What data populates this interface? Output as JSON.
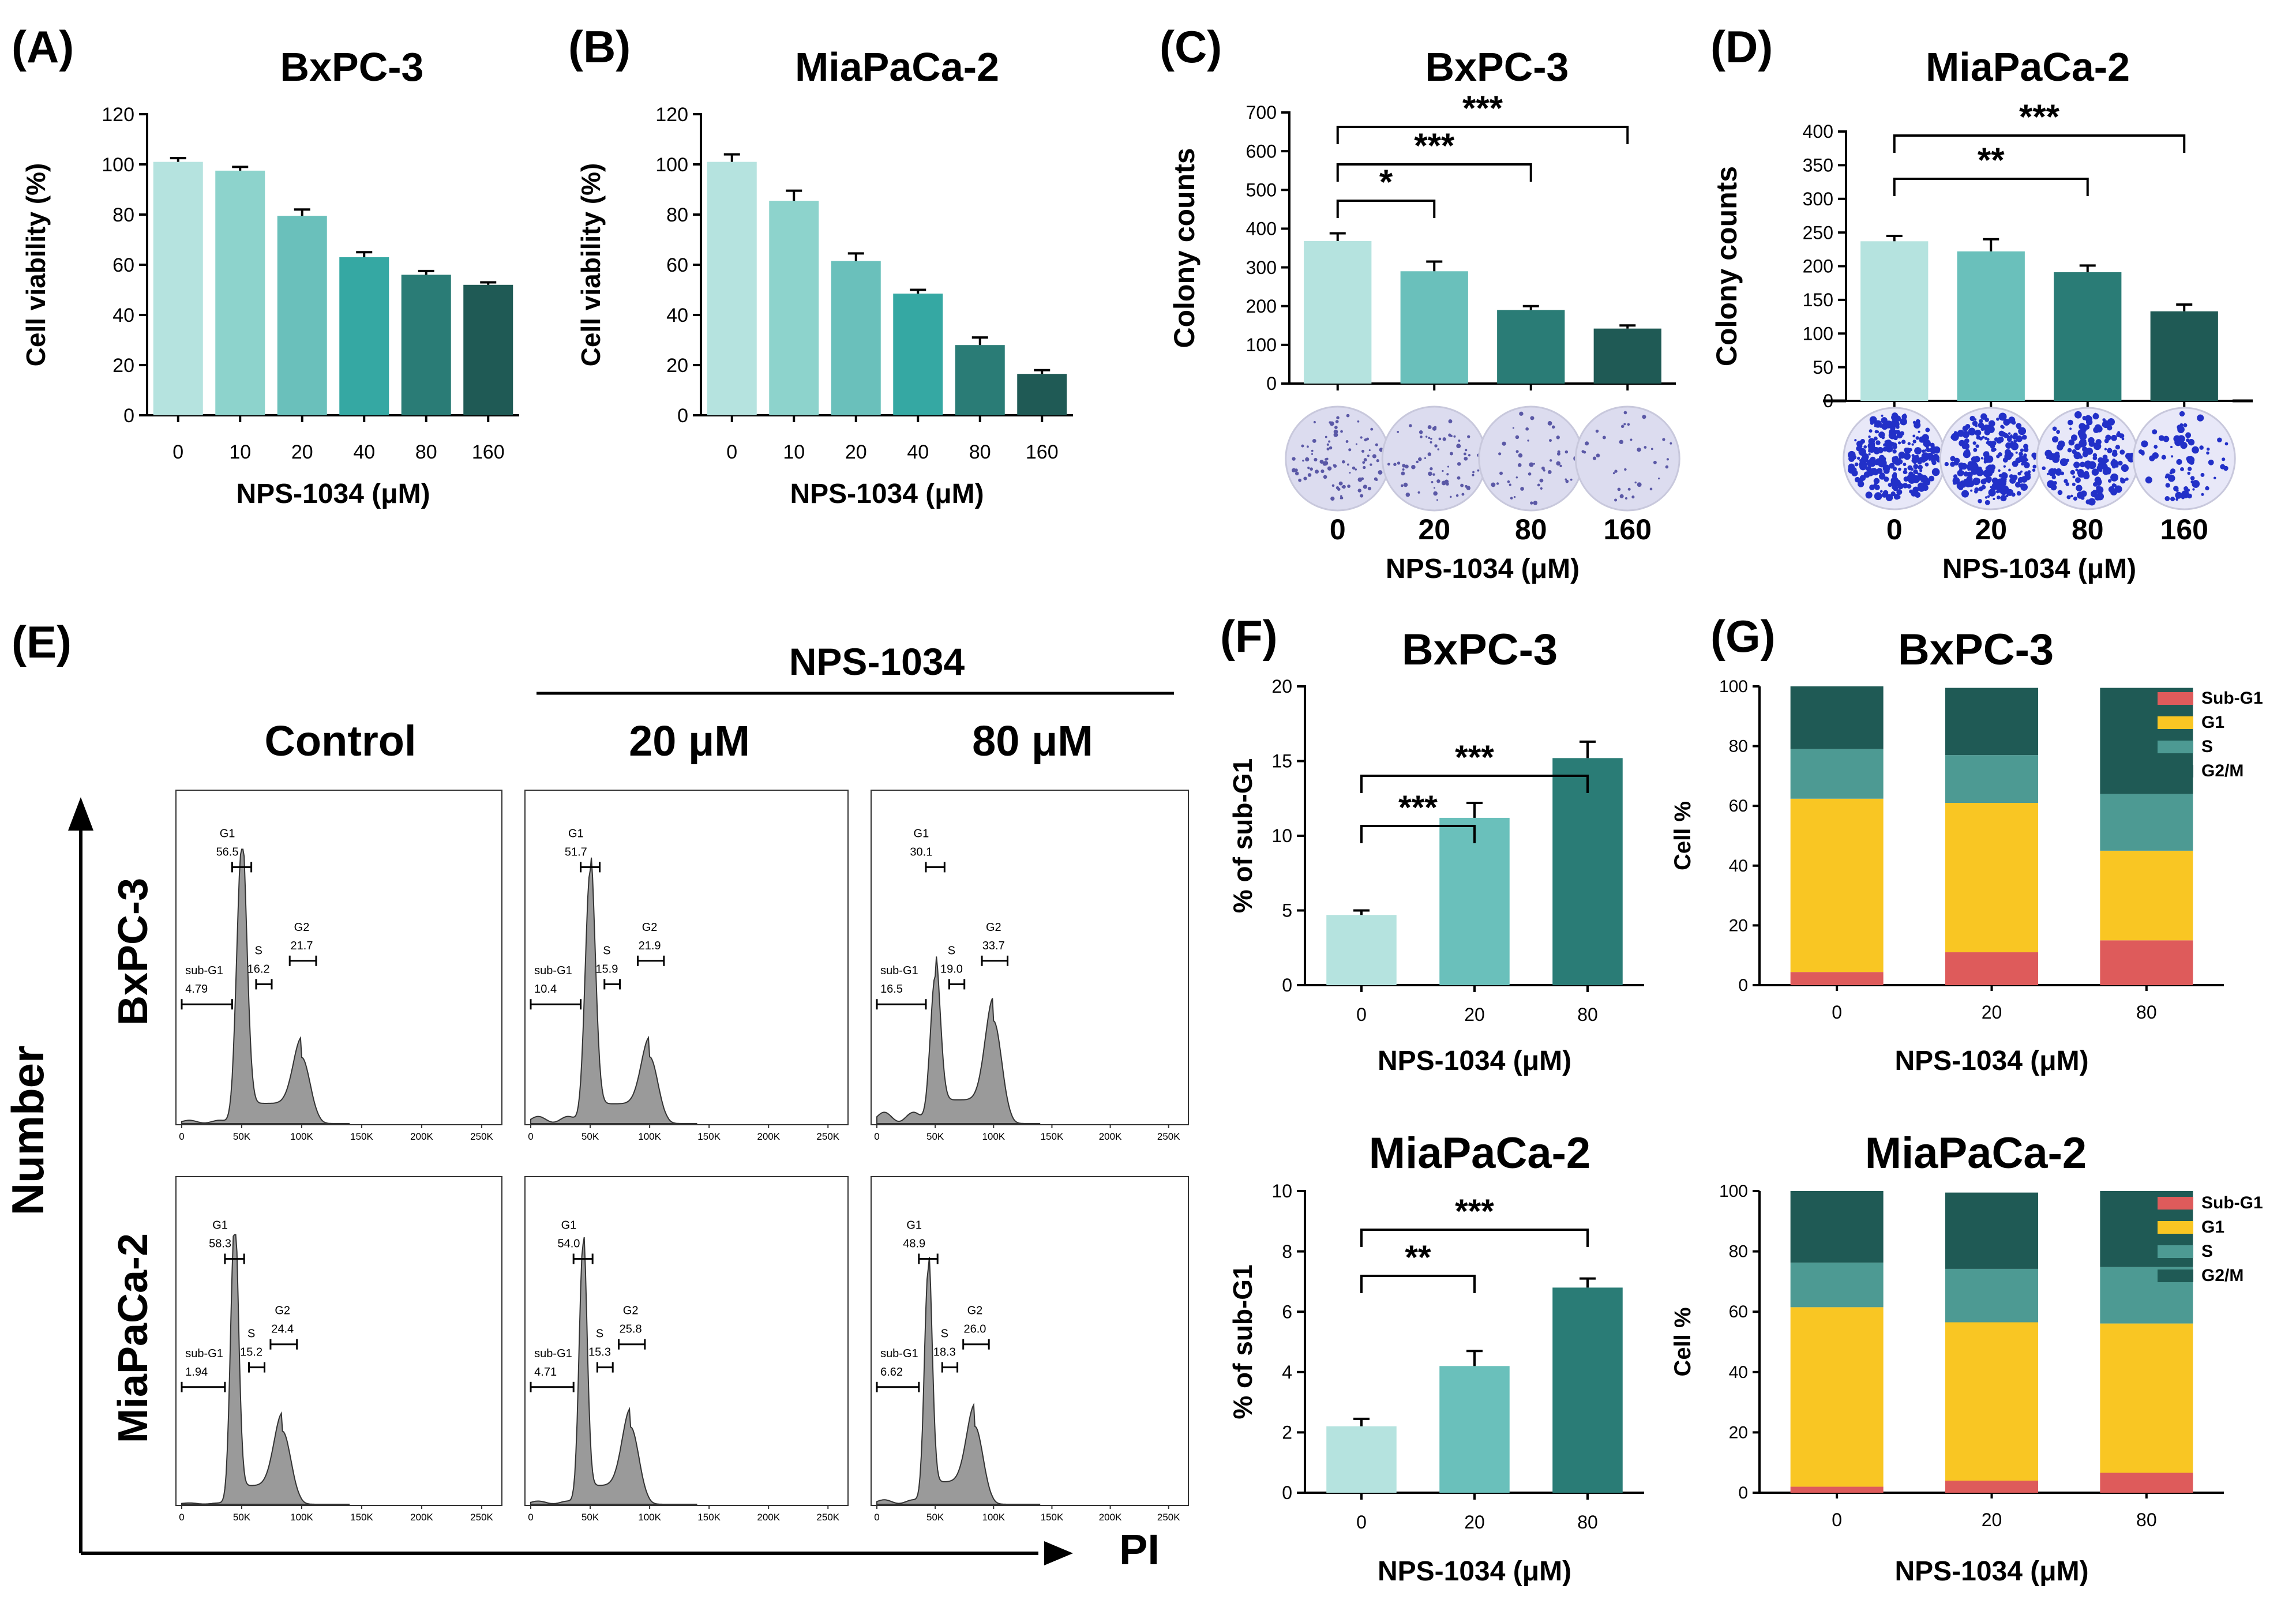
{
  "figure": {
    "background": "#ffffff"
  },
  "colors": {
    "c0": "#b5e3df",
    "c10": "#8dd3cc",
    "c20": "#6ac0bb",
    "c40": "#35a8a3",
    "c80": "#2a7c76",
    "c160": "#1f5a55",
    "subg1": "#de5b5b",
    "g1": "#f9c623",
    "s": "#4d9a93",
    "g2m": "#1f5a55",
    "histFill": "#9a9a9a",
    "axis": "#000000"
  },
  "chart_data": [
    {
      "panel": "(A)",
      "type": "bar",
      "title": "BxPC-3",
      "categories": [
        "0",
        "10",
        "20",
        "40",
        "80",
        "160"
      ],
      "values": [
        101,
        97.5,
        79.5,
        63,
        56,
        52
      ],
      "errors": [
        1.5,
        1.5,
        2.5,
        2,
        1.5,
        1
      ],
      "ylabel": "Cell viability (%)",
      "xlabel": "NPS-1034  (μM)",
      "ylim": [
        0,
        120
      ],
      "yticks": [
        "0",
        "20",
        "40",
        "60",
        "80",
        "100",
        "120"
      ],
      "significance": []
    },
    {
      "panel": "(B)",
      "type": "bar",
      "title": "MiaPaCa-2",
      "categories": [
        "0",
        "10",
        "20",
        "40",
        "80",
        "160"
      ],
      "values": [
        101,
        85.5,
        61.5,
        48.5,
        28,
        16.5
      ],
      "errors": [
        3,
        4,
        3,
        1.5,
        3,
        1.5
      ],
      "ylabel": "Cell viability (%)",
      "xlabel": "NPS-1034  (μM)",
      "ylim": [
        0,
        120
      ],
      "yticks": [
        "0",
        "20",
        "40",
        "60",
        "80",
        "100",
        "120"
      ],
      "significance": []
    },
    {
      "panel": "(C)",
      "type": "bar",
      "title": "BxPC-3",
      "categories": [
        "0",
        "20",
        "80",
        "160"
      ],
      "values": [
        368,
        290,
        190,
        142
      ],
      "errors": [
        20,
        25,
        10,
        8
      ],
      "ylabel": "Colony counts",
      "xlabel": "NPS-1034 (μM)",
      "ylim": [
        0,
        700
      ],
      "yticks": [
        "0",
        "100",
        "200",
        "300",
        "400",
        "500",
        "600",
        "700"
      ],
      "significance": [
        {
          "from": 0,
          "to": 1,
          "label": "*"
        },
        {
          "from": 0,
          "to": 2,
          "label": "***"
        },
        {
          "from": 0,
          "to": 3,
          "label": "***"
        }
      ]
    },
    {
      "panel": "(D)",
      "type": "bar",
      "title": "MiaPaCa-2",
      "categories": [
        "0",
        "20",
        "80",
        "160"
      ],
      "values": [
        237,
        222,
        191,
        133
      ],
      "errors": [
        8,
        18,
        10,
        10
      ],
      "ylabel": "Colony counts",
      "xlabel": "NPS-1034 (μM)",
      "ylim": [
        0,
        400
      ],
      "yticks": [
        "0",
        "50",
        "100",
        "150",
        "200",
        "250",
        "300",
        "350",
        "400"
      ],
      "significance": [
        {
          "from": 0,
          "to": 2,
          "label": "**"
        },
        {
          "from": 0,
          "to": 3,
          "label": "***"
        }
      ]
    },
    {
      "panel": "(F)",
      "type": "bar",
      "title": "BxPC-3",
      "categories": [
        "0",
        "20",
        "80"
      ],
      "values": [
        4.7,
        11.2,
        15.2
      ],
      "errors": [
        0.3,
        1.0,
        1.1
      ],
      "ylabel": "% of sub-G1",
      "xlabel": "NPS-1034  (μM)",
      "ylim": [
        0,
        20
      ],
      "yticks": [
        "0",
        "5",
        "10",
        "15",
        "20"
      ],
      "significance": [
        {
          "from": 0,
          "to": 1,
          "label": "***"
        },
        {
          "from": 0,
          "to": 2,
          "label": "***"
        }
      ]
    },
    {
      "panel": "",
      "type": "bar",
      "title": "MiaPaCa-2",
      "categories": [
        "0",
        "20",
        "80"
      ],
      "values": [
        2.2,
        4.2,
        6.8
      ],
      "errors": [
        0.25,
        0.5,
        0.3
      ],
      "ylabel": "% of sub-G1",
      "xlabel": "NPS-1034  (μM)",
      "ylim": [
        0,
        10
      ],
      "yticks": [
        "0",
        "2",
        "4",
        "6",
        "8",
        "10"
      ],
      "significance": [
        {
          "from": 0,
          "to": 1,
          "label": "**"
        },
        {
          "from": 0,
          "to": 2,
          "label": "***"
        }
      ]
    },
    {
      "panel": "(G)",
      "type": "stacked-bar",
      "title": "BxPC-3",
      "categories": [
        "0",
        "20",
        "80"
      ],
      "series": [
        {
          "name": "Sub-G1",
          "values": [
            4.4,
            11,
            15
          ]
        },
        {
          "name": "G1",
          "values": [
            58,
            50,
            30
          ]
        },
        {
          "name": "S",
          "values": [
            16.6,
            16,
            19
          ]
        },
        {
          "name": "G2/M",
          "values": [
            21,
            22.5,
            35.5
          ]
        }
      ],
      "ylabel": "Cell %",
      "xlabel": "NPS-1034  (μM)",
      "ylim": [
        0,
        100
      ],
      "yticks": [
        "0",
        "20",
        "40",
        "60",
        "80",
        "100"
      ],
      "legend_position": "top-right"
    },
    {
      "panel": "",
      "type": "stacked-bar",
      "title": "MiaPaCa-2",
      "categories": [
        "0",
        "20",
        "80"
      ],
      "series": [
        {
          "name": "Sub-G1",
          "values": [
            2,
            4,
            6.6
          ]
        },
        {
          "name": "G1",
          "values": [
            59.5,
            52.5,
            49.5
          ]
        },
        {
          "name": "S",
          "values": [
            14.8,
            17.7,
            18.7
          ]
        },
        {
          "name": "G2/M",
          "values": [
            23.7,
            25.3,
            25.2
          ]
        }
      ],
      "ylabel": "Cell %",
      "xlabel": "NPS-1034  (μM)",
      "ylim": [
        0,
        100
      ],
      "yticks": [
        "0",
        "20",
        "40",
        "60",
        "80",
        "100"
      ],
      "legend_position": "top-right"
    }
  ],
  "colony_plates": {
    "C": [
      "0",
      "20",
      "80",
      "160"
    ],
    "D": [
      "0",
      "20",
      "80",
      "160"
    ]
  },
  "panelE": {
    "label": "(E)",
    "treatment_header": "NPS-1034",
    "columns": [
      "Control",
      "20 μM",
      "80 μM"
    ],
    "rows": [
      "BxPC-3",
      "MiaPaCa-2"
    ],
    "y_axis_label": "Number",
    "x_axis_label": "PI",
    "x_ticks": [
      "0",
      "50K",
      "100K",
      "150K",
      "200K",
      "250K"
    ],
    "histograms": [
      [
        {
          "subg1": "4.79",
          "g1": "56.5",
          "s": "16.2",
          "g2": "21.7"
        },
        {
          "subg1": "10.4",
          "g1": "51.7",
          "s": "15.9",
          "g2": "21.9"
        },
        {
          "subg1": "16.5",
          "g1": "30.1",
          "s": "19.0",
          "g2": "33.7"
        }
      ],
      [
        {
          "subg1": "1.94",
          "g1": "58.3",
          "s": "15.2",
          "g2": "24.4"
        },
        {
          "subg1": "4.71",
          "g1": "54.0",
          "s": "15.3",
          "g2": "25.8"
        },
        {
          "subg1": "6.62",
          "g1": "48.9",
          "s": "18.3",
          "g2": "26.0"
        }
      ]
    ],
    "gate_names": {
      "subg1": "sub-G1",
      "g1": "G1",
      "s": "S",
      "g2": "G2"
    }
  }
}
